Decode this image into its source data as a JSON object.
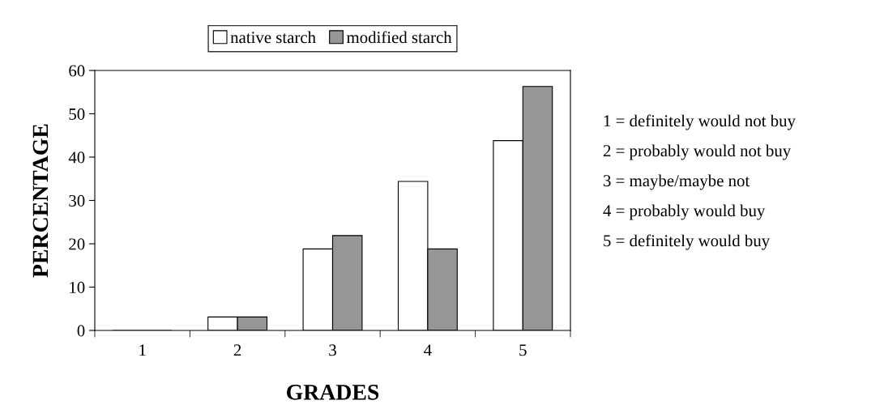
{
  "chart_data": {
    "type": "bar",
    "xlabel": "GRADES",
    "ylabel": "PERCENTAGE",
    "categories": [
      "1",
      "2",
      "3",
      "4",
      "5"
    ],
    "series": [
      {
        "name": "native starch",
        "color": "#ffffff",
        "values": [
          0,
          3.1,
          18.8,
          34.4,
          43.8
        ]
      },
      {
        "name": "modified starch",
        "color": "#969696",
        "values": [
          0,
          3.1,
          21.9,
          18.8,
          56.3
        ]
      }
    ],
    "ylim": [
      0,
      60
    ],
    "yticks": [
      0,
      10,
      20,
      30,
      40,
      50,
      60
    ],
    "grid": false,
    "legend": "top",
    "annotations": [
      "1 = definitely would not buy",
      "2 = probably would not buy",
      "3 = maybe/maybe not",
      "4 = probably would buy",
      "5 = definitely would buy"
    ]
  }
}
